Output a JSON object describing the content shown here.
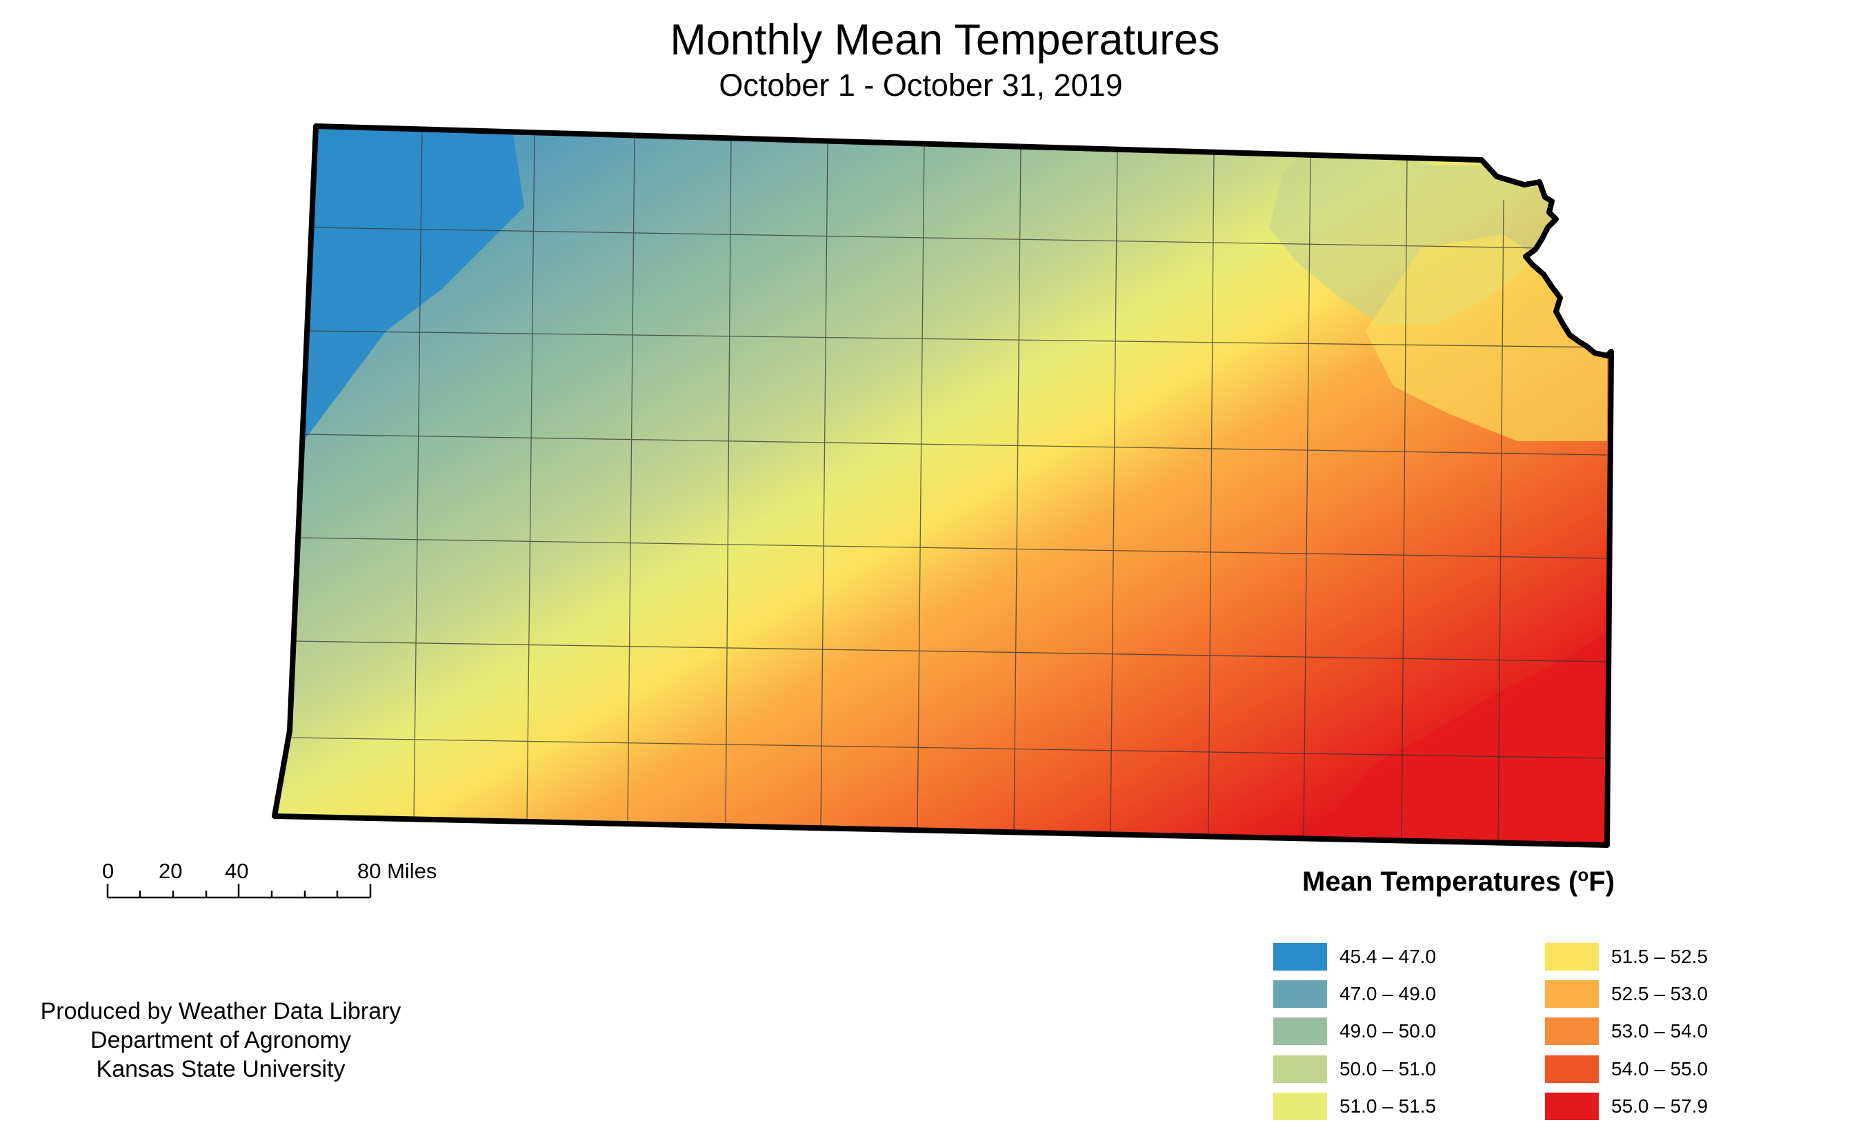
{
  "title": "Monthly Mean Temperatures",
  "subtitle": "October 1 - October 31, 2019",
  "scale_bar": {
    "labels": [
      "0",
      "20",
      "40",
      "80 Miles"
    ]
  },
  "credits": [
    "Produced by Weather Data Library",
    "Department of Agronomy",
    "Kansas State University"
  ],
  "legend": {
    "title_prefix": "Mean Temperatures (",
    "title_degree": "o",
    "title_suffix": "F)",
    "items": [
      {
        "label": "45.4 – 47.0",
        "color": "#2b8cca"
      },
      {
        "label": "47.0 – 49.0",
        "color": "#67a4b4"
      },
      {
        "label": "49.0 – 50.0",
        "color": "#97bf9e"
      },
      {
        "label": "50.0 – 51.0",
        "color": "#c3d48f"
      },
      {
        "label": "51.0 – 51.5",
        "color": "#e8ec74"
      },
      {
        "label": "51.5 – 52.5",
        "color": "#fbe25c"
      },
      {
        "label": "52.5 – 53.0",
        "color": "#fbaf45"
      },
      {
        "label": "53.0 – 54.0",
        "color": "#f78a36"
      },
      {
        "label": "54.0 – 55.0",
        "color": "#ee5526"
      },
      {
        "label": "55.0 – 57.9",
        "color": "#e31a1c"
      }
    ]
  }
}
